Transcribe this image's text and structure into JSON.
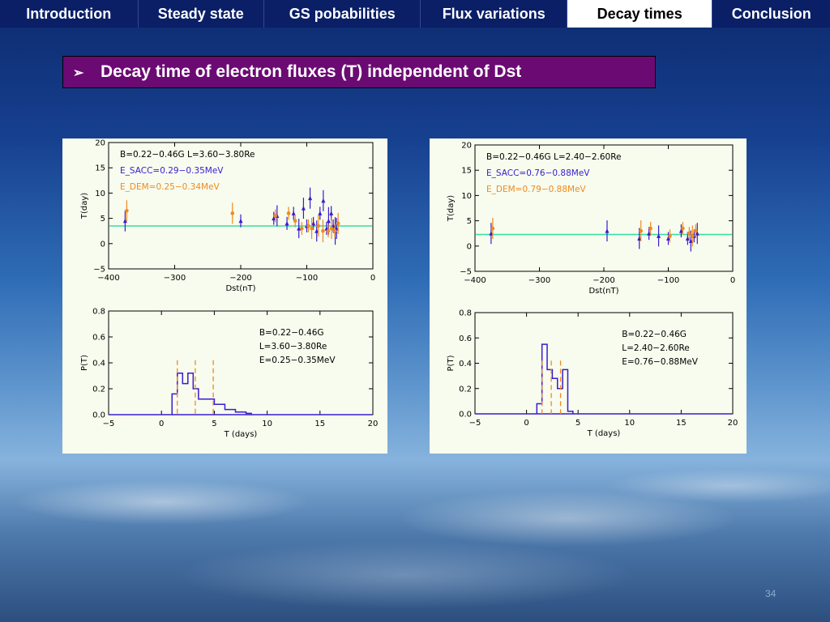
{
  "nav": {
    "tabs": [
      {
        "label": "Introduction",
        "active": false
      },
      {
        "label": "Steady state",
        "active": false
      },
      {
        "label": "GS pobabilities",
        "active": false
      },
      {
        "label": "Flux variations",
        "active": false
      },
      {
        "label": "Decay times",
        "active": true
      },
      {
        "label": "Conclusion",
        "active": false
      }
    ]
  },
  "banner": {
    "bullet": "➢",
    "title": "Decay time of electron fluxes (T) independent of Dst"
  },
  "colors": {
    "sacc": "#3a1bd0",
    "dem": "#f08a20",
    "fit_line": "#33e0a0",
    "banner_bg": "#6b0a73"
  },
  "chart_data": [
    {
      "type": "scatter",
      "xlabel": "Dst(nT)",
      "ylabel": "T(day)",
      "xlim": [
        -400,
        0
      ],
      "ylim": [
        -5,
        20
      ],
      "xticks": [
        "−400",
        "−300",
        "−200",
        "−100",
        "0"
      ],
      "yticks": [
        "−5",
        "0",
        "5",
        "10",
        "15",
        "20"
      ],
      "annotations": [
        "B=0.22−0.46G   L=3.60−3.80Re",
        "E_SACC=0.29−0.35MeV",
        "E_DEM=0.25−0.34MeV"
      ],
      "hline": 3.5,
      "series": [
        {
          "name": "E_SACC=0.29−0.35MeV",
          "points": [
            [
              -375,
              4.5
            ],
            [
              -200,
              4.5
            ],
            [
              -150,
              5
            ],
            [
              -145,
              5.5
            ],
            [
              -130,
              4
            ],
            [
              -120,
              6
            ],
            [
              -112,
              3
            ],
            [
              -105,
              7
            ],
            [
              -100,
              3.5
            ],
            [
              -95,
              9
            ],
            [
              -90,
              4
            ],
            [
              -85,
              2.5
            ],
            [
              -80,
              6
            ],
            [
              -75,
              8.5
            ],
            [
              -70,
              3
            ],
            [
              -67,
              4.5
            ],
            [
              -63,
              6
            ],
            [
              -60,
              3.5
            ],
            [
              -57,
              2.5
            ],
            [
              -55,
              3
            ]
          ]
        },
        {
          "name": "E_DEM=0.25−0.34MeV",
          "points": [
            [
              -375,
              6.5
            ],
            [
              -215,
              6
            ],
            [
              -150,
              5.5
            ],
            [
              -130,
              6
            ],
            [
              -120,
              4.5
            ],
            [
              -110,
              3
            ],
            [
              -100,
              3.5
            ],
            [
              -95,
              3
            ],
            [
              -85,
              3.5
            ],
            [
              -78,
              2.5
            ],
            [
              -70,
              2.5
            ],
            [
              -65,
              3
            ],
            [
              -60,
              2.5
            ],
            [
              -55,
              4
            ]
          ]
        }
      ]
    },
    {
      "type": "histogram",
      "xlabel": "T (days)",
      "ylabel": "P(T)",
      "xlim": [
        -5,
        20
      ],
      "ylim": [
        0,
        0.8
      ],
      "xticks": [
        "−5",
        "0",
        "5",
        "10",
        "15",
        "20"
      ],
      "yticks": [
        "0.0",
        "0.2",
        "0.4",
        "0.6",
        "0.8"
      ],
      "annotations": [
        "B=0.22−0.46G",
        "L=3.60−3.80Re",
        "E=0.25−0.35MeV"
      ],
      "bins": [
        [
          1,
          1.5,
          0.16
        ],
        [
          1.5,
          2,
          0.32
        ],
        [
          2,
          2.5,
          0.24
        ],
        [
          2.5,
          3,
          0.32
        ],
        [
          3,
          3.5,
          0.2
        ],
        [
          3.5,
          5,
          0.12
        ],
        [
          5,
          6,
          0.08
        ],
        [
          6,
          7,
          0.04
        ],
        [
          7,
          8,
          0.02
        ],
        [
          8,
          8.5,
          0.01
        ]
      ],
      "vlines": [
        1.5,
        3.2,
        4.9
      ]
    },
    {
      "type": "scatter",
      "xlabel": "Dst(nT)",
      "ylabel": "T(day)",
      "xlim": [
        -400,
        0
      ],
      "ylim": [
        -5,
        20
      ],
      "xticks": [
        "−400",
        "−300",
        "−200",
        "−100",
        "0"
      ],
      "yticks": [
        "−5",
        "0",
        "5",
        "10",
        "15",
        "20"
      ],
      "annotations": [
        "B=0.22−0.46G   L=2.40−2.60Re",
        "E_SACC=0.76−0.88MeV",
        "E_DEM=0.79−0.88MeV"
      ],
      "hline": 2.3,
      "series": [
        {
          "name": "E_SACC=0.76−0.88MeV",
          "points": [
            [
              -375,
              2.5
            ],
            [
              -195,
              3
            ],
            [
              -145,
              1.5
            ],
            [
              -130,
              2.5
            ],
            [
              -115,
              2
            ],
            [
              -100,
              1.5
            ],
            [
              -80,
              3
            ],
            [
              -70,
              1.5
            ],
            [
              -65,
              1
            ],
            [
              -60,
              2
            ],
            [
              -55,
              2.5
            ]
          ]
        },
        {
          "name": "E_DEM=0.79−0.88MeV",
          "points": [
            [
              -375,
              3.5
            ],
            [
              -145,
              3
            ],
            [
              -130,
              3.5
            ],
            [
              -100,
              2
            ],
            [
              -80,
              3.5
            ],
            [
              -70,
              2.5
            ],
            [
              -65,
              2
            ],
            [
              -60,
              3
            ]
          ]
        }
      ]
    },
    {
      "type": "histogram",
      "xlabel": "T (days)",
      "ylabel": "P(T)",
      "xlim": [
        -5,
        20
      ],
      "ylim": [
        0,
        0.8
      ],
      "xticks": [
        "−5",
        "0",
        "5",
        "10",
        "15",
        "20"
      ],
      "yticks": [
        "0.0",
        "0.2",
        "0.4",
        "0.6",
        "0.8"
      ],
      "annotations": [
        "B=0.22−0.46G",
        "L=2.40−2.60Re",
        "E=0.76−0.88MeV"
      ],
      "bins": [
        [
          1,
          1.5,
          0.08
        ],
        [
          1.5,
          2,
          0.55
        ],
        [
          2,
          2.5,
          0.35
        ],
        [
          2.5,
          3,
          0.28
        ],
        [
          3,
          3.5,
          0.2
        ],
        [
          3.5,
          4,
          0.35
        ],
        [
          4,
          4.5,
          0.02
        ]
      ],
      "vlines": [
        1.5,
        2.4,
        3.3
      ]
    }
  ],
  "page_number": "34"
}
